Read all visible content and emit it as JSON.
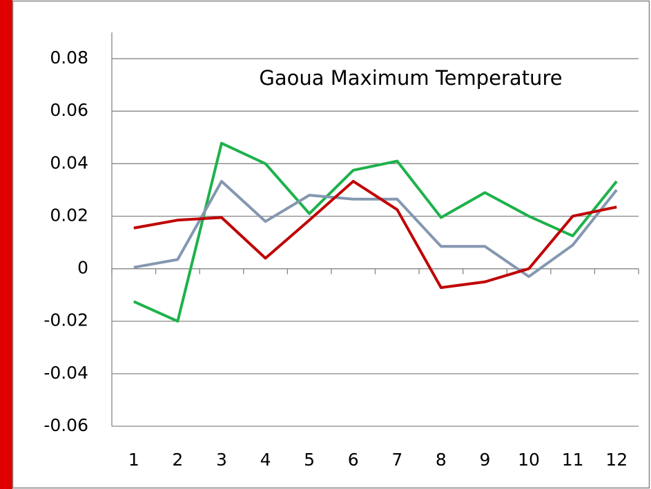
{
  "chart_data": {
    "type": "line",
    "title": "Gaoua Maximum Temperature",
    "categories": [
      "1",
      "2",
      "3",
      "4",
      "5",
      "6",
      "7",
      "8",
      "9",
      "10",
      "11",
      "12"
    ],
    "series": [
      {
        "color": "#1db24b",
        "values": [
          -0.0125,
          -0.02,
          0.0478,
          0.04,
          0.021,
          0.0375,
          0.041,
          0.0195,
          0.029,
          0.02,
          0.0125,
          0.0333
        ]
      },
      {
        "color": "#8497b0",
        "values": [
          0.0005,
          0.0035,
          0.0333,
          0.018,
          0.028,
          0.0265,
          0.0265,
          0.0085,
          0.0085,
          -0.003,
          0.009,
          0.03
        ]
      },
      {
        "color": "#c00000",
        "values": [
          0.0155,
          0.0185,
          0.0195,
          0.004,
          0.0185,
          0.0333,
          0.0225,
          -0.0072,
          -0.005,
          0.0,
          0.02,
          0.0235
        ]
      }
    ],
    "ylim": [
      -0.06,
      0.09
    ],
    "yticks": [
      -0.06,
      -0.04,
      -0.02,
      0,
      0.02,
      0.04,
      0.06,
      0.08
    ],
    "grid": true
  }
}
